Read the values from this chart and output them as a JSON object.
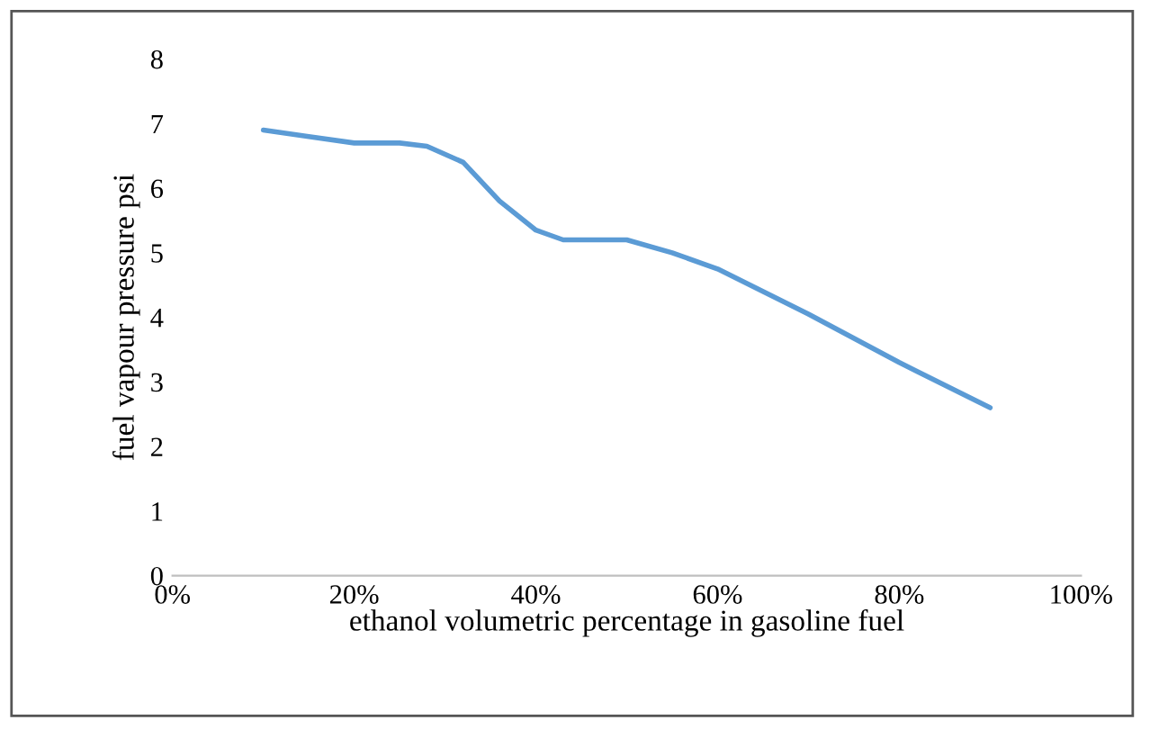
{
  "chart_data": {
    "type": "line",
    "xlabel": "ethanol volumetric percentage in gasoline fuel",
    "ylabel": "fuel vapour pressure psi",
    "x": [
      10,
      15,
      20,
      25,
      28,
      32,
      36,
      40,
      43,
      47,
      50,
      55,
      60,
      70,
      80,
      90
    ],
    "series": [
      {
        "color": "#5b9bd5",
        "values": [
          6.9,
          6.8,
          6.7,
          6.7,
          6.65,
          6.4,
          5.8,
          5.35,
          5.2,
          5.2,
          5.2,
          5.0,
          4.75,
          4.05,
          3.3,
          2.6
        ]
      }
    ],
    "xlim": [
      0,
      100
    ],
    "xticks": [
      {
        "value": 0,
        "label": "0%"
      },
      {
        "value": 20,
        "label": "20%"
      },
      {
        "value": 40,
        "label": "40%"
      },
      {
        "value": 60,
        "label": "60%"
      },
      {
        "value": 80,
        "label": "80%"
      },
      {
        "value": 100,
        "label": "100%"
      }
    ],
    "ylim": [
      0,
      8
    ],
    "yticks": [
      0,
      1,
      2,
      3,
      4,
      5,
      6,
      7,
      8
    ],
    "grid": false,
    "legend": false,
    "marker": "none",
    "line_style": "solid"
  }
}
